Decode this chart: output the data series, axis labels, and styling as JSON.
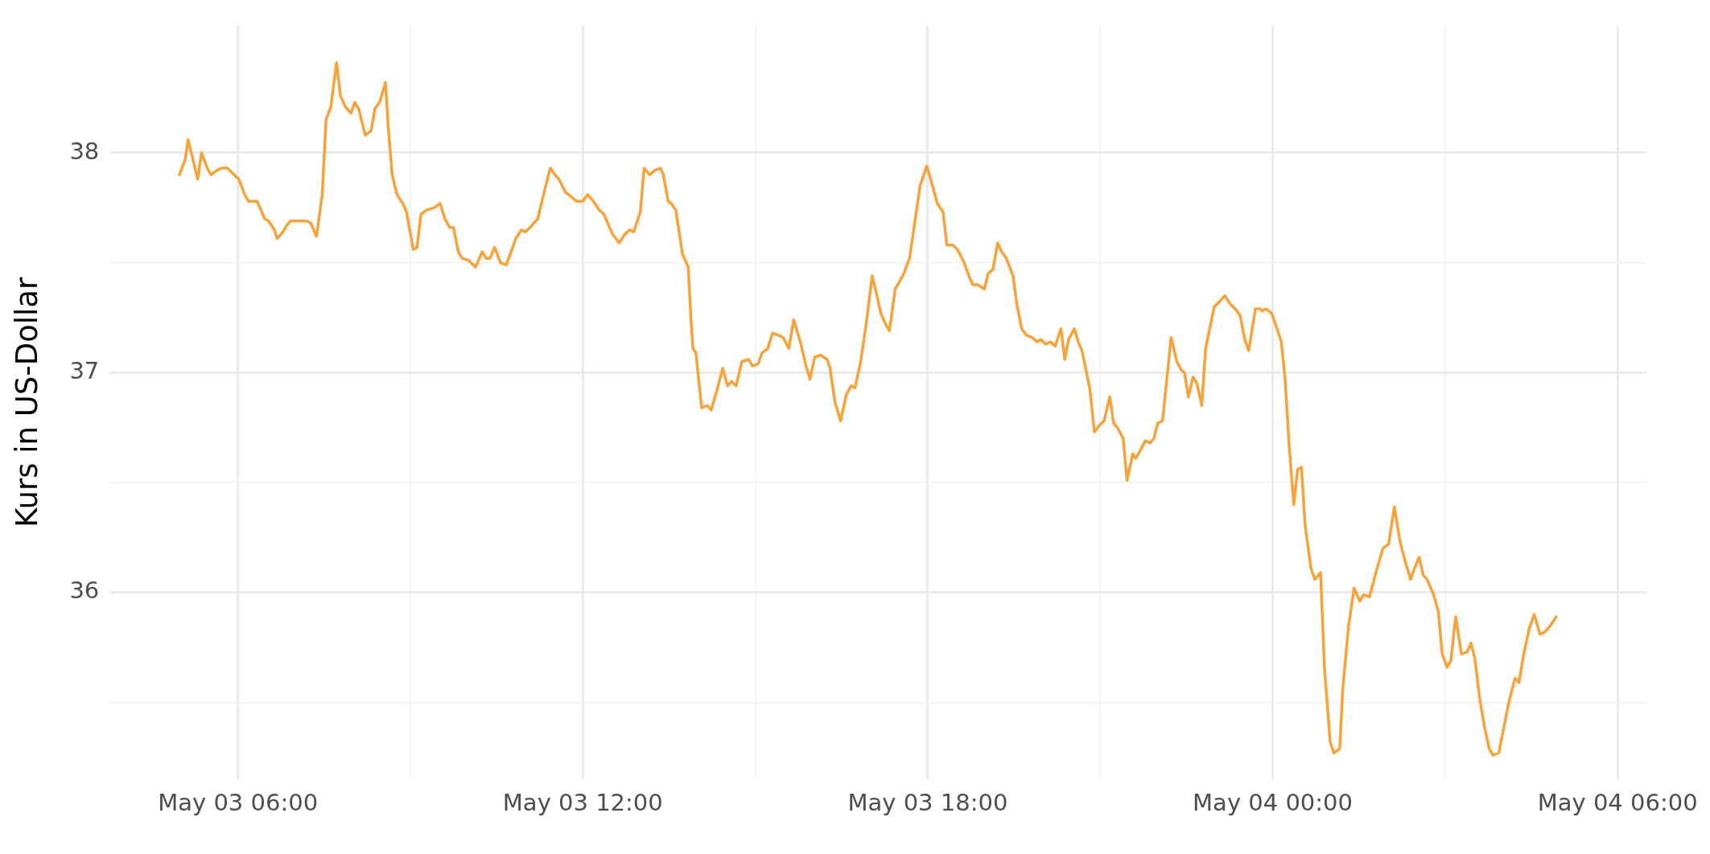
{
  "chart_data": {
    "type": "line",
    "ylabel": "Kurs in US-Dollar",
    "x": [
      "--05-03T04:59",
      "--05-03T05:05",
      "--05-03T05:08",
      "--05-03T05:13",
      "--05-03T05:18",
      "--05-03T05:22",
      "--05-03T05:28",
      "--05-03T05:32",
      "--05-03T05:38",
      "--05-03T05:43",
      "--05-03T05:49",
      "--05-03T05:56",
      "--05-03T06:01",
      "--05-03T06:07",
      "--05-03T06:11",
      "--05-03T06:20",
      "--05-03T06:28",
      "--05-03T06:32",
      "--05-03T06:38",
      "--05-03T06:41",
      "--05-03T06:47",
      "--05-03T06:51",
      "--05-03T06:55",
      "--05-03T07:00",
      "--05-03T07:05",
      "--05-03T07:12",
      "--05-03T07:16",
      "--05-03T07:22",
      "--05-03T07:28",
      "--05-03T07:32",
      "--05-03T07:37",
      "--05-03T07:43",
      "--05-03T07:47",
      "--05-03T07:52",
      "--05-03T07:58",
      "--05-03T08:02",
      "--05-03T08:06",
      "--05-03T08:13",
      "--05-03T08:19",
      "--05-03T08:23",
      "--05-03T08:28",
      "--05-03T08:34",
      "--05-03T08:37",
      "--05-03T08:41",
      "--05-03T08:46",
      "--05-03T08:52",
      "--05-03T08:56",
      "--05-03T09:03",
      "--05-03T09:07",
      "--05-03T09:11",
      "--05-03T09:17",
      "--05-03T09:25",
      "--05-03T09:31",
      "--05-03T09:36",
      "--05-03T09:41",
      "--05-03T09:45",
      "--05-03T09:50",
      "--05-03T09:54",
      "--05-03T10:01",
      "--05-03T10:08",
      "--05-03T10:15",
      "--05-03T10:19",
      "--05-03T10:23",
      "--05-03T10:28",
      "--05-03T10:34",
      "--05-03T10:40",
      "--05-03T10:46",
      "--05-03T10:50",
      "--05-03T10:56",
      "--05-03T11:00",
      "--05-03T11:07",
      "--05-03T11:13",
      "--05-03T11:19",
      "--05-03T11:26",
      "--05-03T11:31",
      "--05-03T11:35",
      "--05-03T11:42",
      "--05-03T11:48",
      "--05-03T11:53",
      "--05-03T12:00",
      "--05-03T12:05",
      "--05-03T12:11",
      "--05-03T12:17",
      "--05-03T12:22",
      "--05-03T12:26",
      "--05-03T12:31",
      "--05-03T12:38",
      "--05-03T12:44",
      "--05-03T12:49",
      "--05-03T12:53",
      "--05-03T13:00",
      "--05-03T13:04",
      "--05-03T13:10",
      "--05-03T13:15",
      "--05-03T13:21",
      "--05-03T13:24",
      "--05-03T13:29",
      "--05-03T13:32",
      "--05-03T13:37",
      "--05-03T13:44",
      "--05-03T13:50",
      "--05-03T13:53",
      "--05-03T13:55",
      "--05-03T13:58",
      "--05-03T14:04",
      "--05-03T14:10",
      "--05-03T14:14",
      "--05-03T14:20",
      "--05-03T14:26",
      "--05-03T14:31",
      "--05-03T14:35",
      "--05-03T14:40",
      "--05-03T14:46",
      "--05-03T14:53",
      "--05-03T14:57",
      "--05-03T15:03",
      "--05-03T15:07",
      "--05-03T15:13",
      "--05-03T15:18",
      "--05-03T15:24",
      "--05-03T15:29",
      "--05-03T15:35",
      "--05-03T15:40",
      "--05-03T15:47",
      "--05-03T15:53",
      "--05-03T15:57",
      "--05-03T16:02",
      "--05-03T16:08",
      "--05-03T16:15",
      "--05-03T16:18",
      "--05-03T16:23",
      "--05-03T16:29",
      "--05-03T16:35",
      "--05-03T16:40",
      "--05-03T16:44",
      "--05-03T16:50",
      "--05-03T16:56",
      "--05-03T17:02",
      "--05-03T17:07",
      "--05-03T17:11",
      "--05-03T17:16",
      "--05-03T17:20",
      "--05-03T17:26",
      "--05-03T17:30",
      "--05-03T17:35",
      "--05-03T17:41",
      "--05-03T17:47",
      "--05-03T17:52",
      "--05-03T17:59",
      "--05-03T18:05",
      "--05-03T18:10",
      "--05-03T18:16",
      "--05-03T18:20",
      "--05-03T18:26",
      "--05-03T18:31",
      "--05-03T18:37",
      "--05-03T18:43",
      "--05-03T18:47",
      "--05-03T18:52",
      "--05-03T18:59",
      "--05-03T19:03",
      "--05-03T19:08",
      "--05-03T19:13",
      "--05-03T19:17",
      "--05-03T19:22",
      "--05-03T19:29",
      "--05-03T19:33",
      "--05-03T19:38",
      "--05-03T19:43",
      "--05-03T19:49",
      "--05-03T19:54",
      "--05-03T19:58",
      "--05-03T20:03",
      "--05-03T20:08",
      "--05-03T20:13",
      "--05-03T20:19",
      "--05-03T20:23",
      "--05-03T20:27",
      "--05-03T20:33",
      "--05-03T20:37",
      "--05-03T20:41",
      "--05-03T20:49",
      "--05-03T20:54",
      "--05-03T20:59",
      "--05-03T21:04",
      "--05-03T21:10",
      "--05-03T21:14",
      "--05-03T21:18",
      "--05-03T21:24",
      "--05-03T21:28",
      "--05-03T21:34",
      "--05-03T21:37",
      "--05-03T21:41",
      "--05-03T21:47",
      "--05-03T21:52",
      "--05-03T21:56",
      "--05-03T22:00",
      "--05-03T22:05",
      "--05-03T22:10",
      "--05-03T22:14",
      "--05-03T22:20",
      "--05-03T22:25",
      "--05-03T22:28",
      "--05-03T22:32",
      "--05-03T22:37",
      "--05-03T22:41",
      "--05-03T22:46",
      "--05-03T22:50",
      "--05-03T22:59",
      "--05-03T23:04",
      "--05-03T23:10",
      "--05-03T23:16",
      "--05-03T23:21",
      "--05-03T23:26",
      "--05-03T23:31",
      "--05-03T23:35",
      "--05-03T23:42",
      "--05-03T23:47",
      "--05-03T23:49",
      "--05-03T23:53",
      "--05-03T23:59",
      "--05-04T00:03",
      "--05-04T00:09",
      "--05-04T00:13",
      "--05-04T00:17",
      "--05-04T00:22",
      "--05-04T00:26",
      "--05-04T00:30",
      "--05-04T00:34",
      "--05-04T00:40",
      "--05-04T00:44",
      "--05-04T00:50",
      "--05-04T00:54",
      "--05-04T01:00",
      "--05-04T01:04",
      "--05-04T01:10",
      "--05-04T01:13",
      "--05-04T01:19",
      "--05-04T01:25",
      "--05-04T01:31",
      "--05-04T01:35",
      "--05-04T01:41",
      "--05-04T01:49",
      "--05-04T01:55",
      "--05-04T02:01",
      "--05-04T02:07",
      "--05-04T02:13",
      "--05-04T02:19",
      "--05-04T02:24",
      "--05-04T02:28",
      "--05-04T02:33",
      "--05-04T02:37",
      "--05-04T02:41",
      "--05-04T02:48",
      "--05-04T02:53",
      "--05-04T02:57",
      "--05-04T03:02",
      "--05-04T03:06",
      "--05-04T03:11",
      "--05-04T03:17",
      "--05-04T03:23",
      "--05-04T03:27",
      "--05-04T03:31",
      "--05-04T03:36",
      "--05-04T03:41",
      "--05-04T03:46",
      "--05-04T03:50",
      "--05-04T03:56",
      "--05-04T04:01",
      "--05-04T04:07",
      "--05-04T04:13",
      "--05-04T04:17",
      "--05-04T04:22",
      "--05-04T04:28",
      "--05-04T04:33",
      "--05-04T04:39",
      "--05-04T04:44",
      "--05-04T04:50",
      "--05-04T04:56"
    ],
    "series": [
      {
        "color": "#f9a23a",
        "values": [
          37.9,
          37.97,
          38.06,
          37.97,
          37.88,
          38.0,
          37.93,
          37.9,
          37.92,
          37.93,
          37.93,
          37.9,
          37.88,
          37.81,
          37.78,
          37.78,
          37.7,
          37.69,
          37.65,
          37.61,
          37.64,
          37.67,
          37.69,
          37.69,
          37.69,
          37.69,
          37.68,
          37.62,
          37.81,
          38.15,
          38.21,
          38.41,
          38.26,
          38.21,
          38.18,
          38.23,
          38.2,
          38.08,
          38.1,
          38.2,
          38.23,
          38.32,
          38.11,
          37.9,
          37.81,
          37.77,
          37.73,
          37.56,
          37.57,
          37.72,
          37.74,
          37.75,
          37.77,
          37.7,
          37.66,
          37.66,
          37.55,
          37.52,
          37.51,
          37.48,
          37.55,
          37.52,
          37.52,
          37.57,
          37.5,
          37.49,
          37.56,
          37.61,
          37.65,
          37.64,
          37.67,
          37.7,
          37.81,
          37.93,
          37.9,
          37.88,
          37.82,
          37.8,
          37.78,
          37.78,
          37.81,
          37.78,
          37.74,
          37.72,
          37.68,
          37.63,
          37.59,
          37.63,
          37.65,
          37.64,
          37.73,
          37.93,
          37.9,
          37.92,
          37.93,
          37.9,
          37.78,
          37.77,
          37.74,
          37.54,
          37.48,
          37.23,
          37.11,
          37.09,
          36.84,
          36.85,
          36.83,
          36.92,
          37.02,
          36.94,
          36.96,
          36.94,
          37.05,
          37.06,
          37.03,
          37.04,
          37.09,
          37.11,
          37.18,
          37.17,
          37.16,
          37.11,
          37.24,
          37.14,
          37.03,
          36.97,
          37.07,
          37.08,
          37.06,
          37.02,
          36.87,
          36.78,
          36.9,
          36.94,
          36.93,
          37.05,
          37.23,
          37.44,
          37.35,
          37.27,
          37.22,
          37.19,
          37.38,
          37.41,
          37.45,
          37.52,
          37.7,
          37.85,
          37.94,
          37.85,
          37.77,
          37.73,
          37.58,
          37.58,
          37.56,
          37.51,
          37.44,
          37.4,
          37.4,
          37.38,
          37.45,
          37.47,
          37.59,
          37.55,
          37.52,
          37.44,
          37.31,
          37.2,
          37.17,
          37.16,
          37.14,
          37.15,
          37.13,
          37.14,
          37.12,
          37.2,
          37.06,
          37.15,
          37.2,
          37.14,
          37.1,
          36.93,
          36.73,
          36.76,
          36.78,
          36.89,
          36.77,
          36.75,
          36.7,
          36.51,
          36.63,
          36.61,
          36.64,
          36.69,
          36.68,
          36.7,
          36.77,
          36.78,
          36.99,
          37.16,
          37.05,
          37.01,
          37.0,
          36.89,
          36.98,
          36.95,
          36.85,
          37.11,
          37.3,
          37.32,
          37.35,
          37.31,
          37.29,
          37.26,
          37.15,
          37.1,
          37.29,
          37.29,
          37.28,
          37.29,
          37.27,
          37.22,
          37.14,
          36.97,
          36.68,
          36.4,
          36.56,
          36.57,
          36.3,
          36.11,
          36.06,
          36.09,
          35.66,
          35.32,
          35.27,
          35.29,
          35.55,
          35.84,
          36.02,
          35.96,
          35.99,
          35.98,
          36.11,
          36.2,
          36.22,
          36.39,
          36.23,
          36.13,
          36.06,
          36.11,
          36.16,
          36.08,
          36.06,
          35.99,
          35.91,
          35.72,
          35.66,
          35.69,
          35.89,
          35.72,
          35.73,
          35.77,
          35.7,
          35.52,
          35.39,
          35.29,
          35.26,
          35.27,
          35.38,
          35.51,
          35.61,
          35.59,
          35.72,
          35.84,
          35.9,
          35.81,
          35.82,
          35.85,
          35.89
        ]
      }
    ],
    "xlim": [
      "--05-03T03:47",
      "--05-04T06:30"
    ],
    "xticks": [
      {
        "value": "--05-03T06:00",
        "label": "May 03 06:00"
      },
      {
        "value": "--05-03T09:00",
        "label": null
      },
      {
        "value": "--05-03T12:00",
        "label": "May 03 12:00"
      },
      {
        "value": "--05-03T15:00",
        "label": null
      },
      {
        "value": "--05-03T18:00",
        "label": "May 03 18:00"
      },
      {
        "value": "--05-03T21:00",
        "label": null
      },
      {
        "value": "--05-04T00:00",
        "label": "May 04 00:00"
      },
      {
        "value": "--05-04T03:00",
        "label": null
      },
      {
        "value": "--05-04T06:00",
        "label": "May 04 06:00"
      }
    ],
    "ylim": [
      35.15,
      38.58
    ],
    "yticks": [
      {
        "value": 35.5,
        "label": null
      },
      36,
      {
        "value": 36.5,
        "label": null
      },
      37,
      {
        "value": 37.5,
        "label": null
      },
      38
    ],
    "grid": true,
    "legend": false,
    "marker": "none",
    "line_style": "solid"
  }
}
